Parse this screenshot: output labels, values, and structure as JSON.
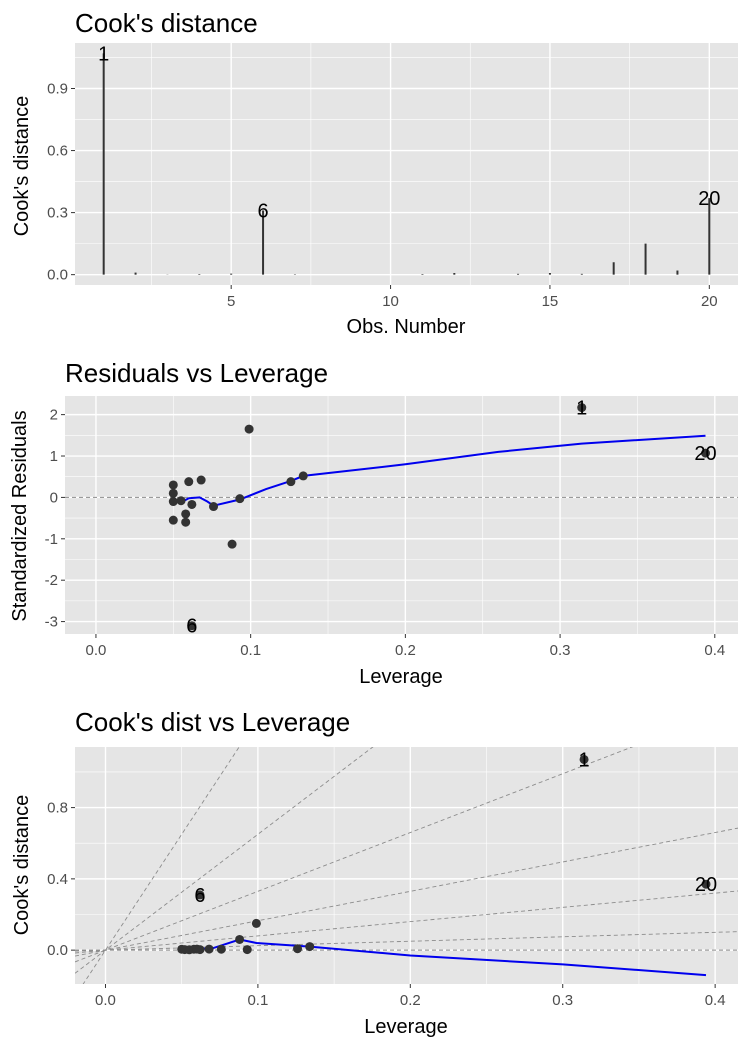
{
  "chart_data": [
    {
      "type": "bar",
      "title": "Cook's distance",
      "xlabel": "Obs. Number",
      "ylabel": "Cook's distance",
      "xlim": [
        0.1,
        20.9
      ],
      "ylim": [
        -0.05,
        1.12
      ],
      "xticks": [
        5,
        10,
        15,
        20
      ],
      "xtick_labels": [
        "5",
        "10",
        "15",
        "20"
      ],
      "yticks": [
        0.0,
        0.3,
        0.6,
        0.9
      ],
      "ytick_labels": [
        "0.0",
        "0.3",
        "0.6",
        "0.9"
      ],
      "categories": [
        1,
        2,
        3,
        4,
        5,
        6,
        7,
        8,
        9,
        10,
        11,
        12,
        13,
        14,
        15,
        16,
        17,
        18,
        19,
        20
      ],
      "values": [
        1.07,
        0.01,
        0.001,
        0.003,
        0.005,
        0.31,
        0.002,
        0.0,
        0.0,
        0.0,
        0.003,
        0.008,
        0.0,
        0.004,
        0.008,
        0.004,
        0.06,
        0.15,
        0.02,
        0.37
      ],
      "annotations": [
        {
          "x": 1,
          "y": 1.07,
          "text": "1"
        },
        {
          "x": 6,
          "y": 0.31,
          "text": "6"
        },
        {
          "x": 20,
          "y": 0.37,
          "text": "20"
        }
      ],
      "grid": true
    },
    {
      "type": "scatter",
      "title": "Residuals vs Leverage",
      "xlabel": "Leverage",
      "ylabel": "Standardized Residuals",
      "xlim": [
        -0.02,
        0.415
      ],
      "ylim": [
        -3.3,
        2.45
      ],
      "xticks": [
        0.0,
        0.1,
        0.2,
        0.3,
        0.4
      ],
      "xtick_labels": [
        "0.0",
        "0.1",
        "0.2",
        "0.3",
        "0.4"
      ],
      "yticks": [
        -3,
        -2,
        -1,
        0,
        1,
        2
      ],
      "ytick_labels": [
        "-3",
        "-2",
        "-1",
        "0",
        "1",
        "2"
      ],
      "reference_lines": [
        {
          "type": "hline",
          "y": 0
        }
      ],
      "points": [
        {
          "x": 0.05,
          "y": 0.3
        },
        {
          "x": 0.05,
          "y": 0.1
        },
        {
          "x": 0.05,
          "y": -0.1
        },
        {
          "x": 0.05,
          "y": -0.55
        },
        {
          "x": 0.055,
          "y": -0.08
        },
        {
          "x": 0.058,
          "y": -0.4
        },
        {
          "x": 0.058,
          "y": -0.6
        },
        {
          "x": 0.06,
          "y": 0.38
        },
        {
          "x": 0.062,
          "y": -0.17
        },
        {
          "x": 0.068,
          "y": 0.42
        },
        {
          "x": 0.076,
          "y": -0.22
        },
        {
          "x": 0.088,
          "y": -1.13
        },
        {
          "x": 0.093,
          "y": -0.03
        },
        {
          "x": 0.099,
          "y": 1.65
        },
        {
          "x": 0.126,
          "y": 0.38
        },
        {
          "x": 0.134,
          "y": 0.52
        },
        {
          "x": 0.314,
          "y": 2.17
        },
        {
          "x": 0.394,
          "y": 1.07
        },
        {
          "x": 0.062,
          "y": -3.1
        }
      ],
      "smooth": [
        {
          "x": 0.05,
          "y": -0.05
        },
        {
          "x": 0.055,
          "y": -0.12
        },
        {
          "x": 0.06,
          "y": -0.02
        },
        {
          "x": 0.067,
          "y": 0.0
        },
        {
          "x": 0.072,
          "y": -0.1
        },
        {
          "x": 0.076,
          "y": -0.2
        },
        {
          "x": 0.093,
          "y": -0.05
        },
        {
          "x": 0.11,
          "y": 0.2
        },
        {
          "x": 0.126,
          "y": 0.4
        },
        {
          "x": 0.134,
          "y": 0.52
        },
        {
          "x": 0.2,
          "y": 0.8
        },
        {
          "x": 0.26,
          "y": 1.1
        },
        {
          "x": 0.314,
          "y": 1.3
        },
        {
          "x": 0.394,
          "y": 1.49
        }
      ],
      "annotations": [
        {
          "x": 0.314,
          "y": 2.17,
          "text": "1"
        },
        {
          "x": 0.062,
          "y": -3.1,
          "text": "6"
        },
        {
          "x": 0.394,
          "y": 1.07,
          "text": "20"
        }
      ],
      "grid": true
    },
    {
      "type": "scatter",
      "title": "Cook's dist vs Leverage",
      "xlabel": "Leverage",
      "ylabel": "Cook's distance",
      "xlim": [
        -0.02,
        0.415
      ],
      "ylim": [
        -0.19,
        1.14
      ],
      "xticks": [
        0.0,
        0.1,
        0.2,
        0.3,
        0.4
      ],
      "xtick_labels": [
        "0.0",
        "0.1",
        "0.2",
        "0.3",
        "0.4"
      ],
      "yticks": [
        0.0,
        0.4,
        0.8
      ],
      "ytick_labels": [
        "0.0",
        "0.4",
        "0.8"
      ],
      "reference_lines": [
        {
          "type": "hline",
          "y": 0
        },
        {
          "type": "abline",
          "intercept": 0,
          "slope": 13.0
        },
        {
          "type": "abline",
          "intercept": 0,
          "slope": 6.5
        },
        {
          "type": "abline",
          "intercept": 0,
          "slope": 3.3
        },
        {
          "type": "abline",
          "intercept": 0,
          "slope": 1.65
        },
        {
          "type": "abline",
          "intercept": 0,
          "slope": 0.8
        },
        {
          "type": "abline",
          "intercept": 0,
          "slope": 0.25
        }
      ],
      "points": [
        {
          "x": 0.05,
          "y": 0.005
        },
        {
          "x": 0.052,
          "y": 0.003
        },
        {
          "x": 0.055,
          "y": 0.002
        },
        {
          "x": 0.058,
          "y": 0.005
        },
        {
          "x": 0.06,
          "y": 0.006
        },
        {
          "x": 0.062,
          "y": 0.003
        },
        {
          "x": 0.068,
          "y": 0.006
        },
        {
          "x": 0.076,
          "y": 0.005
        },
        {
          "x": 0.088,
          "y": 0.06
        },
        {
          "x": 0.093,
          "y": 0.003
        },
        {
          "x": 0.099,
          "y": 0.15
        },
        {
          "x": 0.126,
          "y": 0.008
        },
        {
          "x": 0.134,
          "y": 0.02
        },
        {
          "x": 0.314,
          "y": 1.07
        },
        {
          "x": 0.394,
          "y": 0.37
        },
        {
          "x": 0.062,
          "y": 0.31
        }
      ],
      "smooth": [
        {
          "x": 0.05,
          "y": 0.005
        },
        {
          "x": 0.07,
          "y": 0.01
        },
        {
          "x": 0.088,
          "y": 0.06
        },
        {
          "x": 0.099,
          "y": 0.04
        },
        {
          "x": 0.134,
          "y": 0.02
        },
        {
          "x": 0.2,
          "y": -0.03
        },
        {
          "x": 0.3,
          "y": -0.08
        },
        {
          "x": 0.394,
          "y": -0.14
        }
      ],
      "annotations": [
        {
          "x": 0.314,
          "y": 1.07,
          "text": "1"
        },
        {
          "x": 0.062,
          "y": 0.31,
          "text": "6"
        },
        {
          "x": 0.394,
          "y": 0.37,
          "text": "20"
        }
      ],
      "grid": true
    }
  ],
  "colors": {
    "panel_background": "#e5e5e5",
    "grid": "#ffffff",
    "bar": "#333333",
    "point": "#333333",
    "smooth": "#0000ee",
    "reference": "#8c8c8c"
  }
}
